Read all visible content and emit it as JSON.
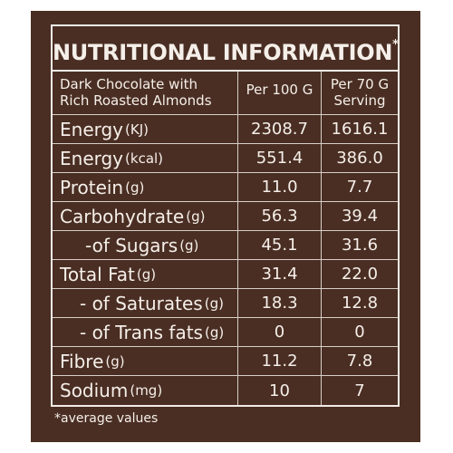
{
  "title": "NUTRITIONAL INFORMATION",
  "title_mark": "*",
  "header": {
    "product_line1": "Dark Chocolate with",
    "product_line2": "Rich Roasted Almonds",
    "col1": "Per 100 G",
    "col2_line1": "Per 70 G",
    "col2_line2": "Serving"
  },
  "rows": [
    {
      "name": "Energy",
      "unit": "(KJ)",
      "per100": "2308.7",
      "per70": "1616.1"
    },
    {
      "name": "Energy",
      "unit": "(kcal)",
      "per100": "551.4",
      "per70": "386.0"
    },
    {
      "name": "Protein",
      "unit": "(g)",
      "per100": "11.0",
      "per70": "7.7"
    },
    {
      "name": "Carbohydrate",
      "unit": "(g)",
      "per100": "56.3",
      "per70": "39.4"
    },
    {
      "name": "-of Sugars",
      "unit": "(g)",
      "per100": "45.1",
      "per70": "31.6"
    },
    {
      "name": "Total Fat",
      "unit": "(g)",
      "per100": "31.4",
      "per70": "22.0"
    },
    {
      "name": "- of Saturates",
      "unit": "(g)",
      "per100": "18.3",
      "per70": "12.8"
    },
    {
      "name": "- of Trans fats",
      "unit": "(g)",
      "per100": "0",
      "per70": "0"
    },
    {
      "name": "Fibre",
      "unit": "(g)",
      "per100": "11.2",
      "per70": "7.8"
    },
    {
      "name": "Sodium",
      "unit": "(mg)",
      "per100": "10",
      "per70": "7"
    }
  ],
  "footnote": "*average values",
  "colors": {
    "background": "#4a2e23",
    "text": "#f5efe9"
  }
}
